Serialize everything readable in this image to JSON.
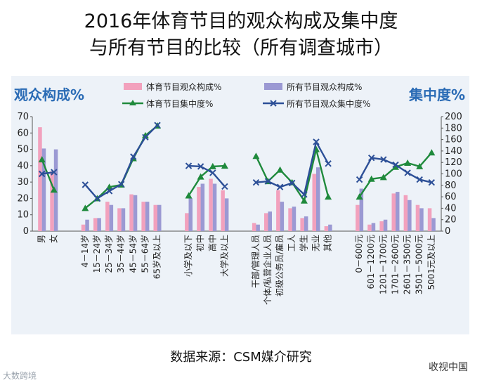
{
  "header": {
    "title_line1": "2016年体育节目的观众构成及集中度",
    "title_line2": "与所有节目的比较（所有调查城市）"
  },
  "footer": {
    "source": "数据来源：CSM媒介研究",
    "watermark_left": "大数跨境",
    "watermark_right": "收视中国"
  },
  "colors": {
    "bar_sports": "#f2a1bd",
    "bar_all": "#9b99d3",
    "line_sports": "#1f8a3c",
    "line_all": "#2c4f97",
    "axis_title": "#2a6bb5"
  },
  "chart_data": {
    "type": "bar",
    "left_axis_title": "观众构成%",
    "right_axis_title": "集中度%",
    "ylim_left": [
      0,
      70
    ],
    "ylim_right": [
      0,
      200
    ],
    "yticks_left": [
      "0",
      "10",
      "20",
      "30",
      "40",
      "50",
      "60",
      "70"
    ],
    "yticks_right": [
      "0",
      "20",
      "40",
      "60",
      "80",
      "100",
      "120",
      "140",
      "160",
      "180",
      "200"
    ],
    "categories": [
      "男",
      "女",
      "4－14岁",
      "15－24岁",
      "25－34岁",
      "35－44岁",
      "45－54岁",
      "55－64岁",
      "65岁及以上",
      "小学及以下",
      "初中",
      "高中",
      "大学及以上",
      "干部/管理人员",
      "个体/私营企业人员",
      "初级公务员/雇员",
      "工人",
      "学生",
      "无业",
      "其他",
      "0－600元",
      "601－1200元",
      "1201－1700元",
      "1701－2600元",
      "2601－3500元",
      "3501－5000元",
      "5001元及以上"
    ],
    "groups": [
      {
        "start": 0,
        "end": 1
      },
      {
        "start": 2,
        "end": 8
      },
      {
        "start": 9,
        "end": 12
      },
      {
        "start": 13,
        "end": 19
      },
      {
        "start": 20,
        "end": 26
      }
    ],
    "series": [
      {
        "name": "体育节目观众构成%",
        "kind": "bar",
        "axis": "left",
        "values": [
          63.5,
          36.5,
          4,
          8,
          18,
          14,
          22.5,
          18,
          16,
          11,
          27,
          32,
          25,
          5,
          11,
          25,
          14,
          8,
          35,
          3,
          16,
          4,
          6,
          23,
          22,
          16,
          14
        ]
      },
      {
        "name": "所有节目观众构成%",
        "kind": "bar",
        "axis": "left",
        "values": [
          50.5,
          50,
          7,
          8,
          16,
          14,
          22,
          18,
          16,
          20,
          29,
          29,
          20,
          4,
          12,
          18,
          15,
          9,
          39,
          4,
          26,
          5,
          7,
          24,
          19,
          14,
          8
        ]
      },
      {
        "name": "体育节目集中度%",
        "kind": "line",
        "axis": "right",
        "values": [
          125,
          72,
          40,
          57,
          77,
          81,
          127,
          167,
          184,
          62,
          95,
          113,
          114,
          131,
          87,
          107,
          85,
          53,
          143,
          60,
          60,
          91,
          94,
          112,
          119,
          113,
          137
        ]
      },
      {
        "name": "所有节目观众集中度%",
        "kind": "line",
        "axis": "right",
        "values": [
          100,
          103,
          81,
          57,
          70,
          82,
          130,
          164,
          185,
          114,
          113,
          102,
          78,
          85,
          87,
          77,
          84,
          64,
          156,
          118,
          90,
          128,
          125,
          116,
          102,
          90,
          85
        ]
      }
    ]
  }
}
